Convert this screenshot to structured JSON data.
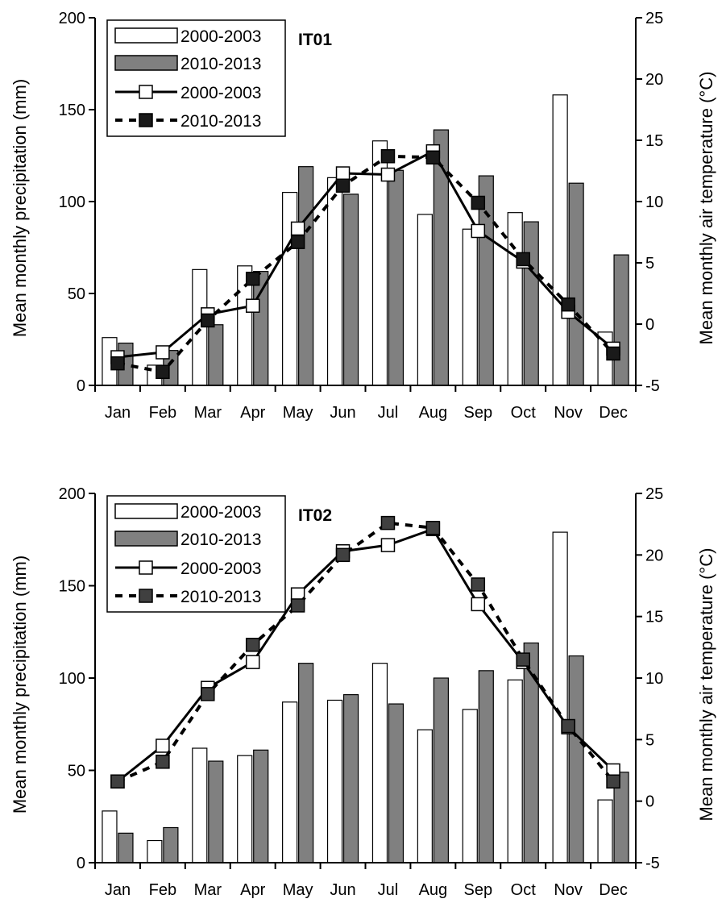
{
  "chart_data": [
    {
      "type": "bar",
      "station_label": "IT01",
      "categories": [
        "Jan",
        "Feb",
        "Mar",
        "Apr",
        "May",
        "Jun",
        "Jul",
        "Aug",
        "Sep",
        "Oct",
        "Nov",
        "Dec"
      ],
      "ylabel": "Mean monthly precipitation (mm)",
      "y2label": "Mean monthly air temperature (°C)",
      "ylim": [
        0,
        200
      ],
      "y2lim": [
        -5,
        25
      ],
      "yticks": [
        "0",
        "50",
        "100",
        "150",
        "200"
      ],
      "y2ticks": [
        "-5",
        "0",
        "5",
        "10",
        "15",
        "20",
        "25"
      ],
      "series": [
        {
          "name": "2000-2003",
          "kind": "bar",
          "axis": "left",
          "fill": "#ffffff",
          "values": [
            26,
            11,
            63,
            65,
            105,
            113,
            133,
            93,
            85,
            94,
            158,
            29
          ]
        },
        {
          "name": "2010-2013",
          "kind": "bar",
          "axis": "left",
          "fill": "#808080",
          "values": [
            23,
            19,
            33,
            62,
            119,
            104,
            117,
            139,
            114,
            89,
            110,
            71
          ]
        },
        {
          "name": "2000-2003",
          "kind": "line",
          "axis": "right",
          "line_style": "solid",
          "marker_fill": "#ffffff",
          "values": [
            -2.7,
            -2.3,
            0.8,
            1.5,
            7.8,
            12.3,
            12.2,
            14.1,
            7.6,
            5.1,
            1.0,
            -2.0
          ]
        },
        {
          "name": "2010-2013",
          "kind": "line",
          "axis": "right",
          "line_style": "dashed",
          "marker_fill": "#1a1a1a",
          "values": [
            -3.2,
            -3.9,
            0.3,
            3.7,
            6.7,
            11.3,
            13.7,
            13.6,
            9.9,
            5.3,
            1.6,
            -2.4
          ]
        }
      ],
      "legend_position": "top-left"
    },
    {
      "type": "bar",
      "station_label": "IT02",
      "categories": [
        "Jan",
        "Feb",
        "Mar",
        "Apr",
        "May",
        "Jun",
        "Jul",
        "Aug",
        "Sep",
        "Oct",
        "Nov",
        "Dec"
      ],
      "ylabel": "Mean monthly precipitation (mm)",
      "y2label": "Mean monthly air temperature (°C)",
      "ylim": [
        0,
        200
      ],
      "y2lim": [
        -5,
        25
      ],
      "yticks": [
        "0",
        "50",
        "100",
        "150",
        "200"
      ],
      "y2ticks": [
        "-5",
        "0",
        "5",
        "10",
        "15",
        "20",
        "25"
      ],
      "series": [
        {
          "name": "2000-2003",
          "kind": "bar",
          "axis": "left",
          "fill": "#ffffff",
          "values": [
            28,
            12,
            62,
            58,
            87,
            88,
            108,
            72,
            83,
            99,
            179,
            34
          ]
        },
        {
          "name": "2010-2013",
          "kind": "bar",
          "axis": "left",
          "fill": "#808080",
          "values": [
            16,
            19,
            55,
            61,
            108,
            91,
            86,
            100,
            104,
            119,
            112,
            49
          ]
        },
        {
          "name": "2000-2003",
          "kind": "line",
          "axis": "right",
          "line_style": "solid",
          "marker_fill": "#ffffff",
          "values": [
            1.6,
            4.5,
            9.2,
            11.3,
            16.8,
            20.3,
            20.8,
            22.1,
            16.0,
            11.3,
            6.0,
            2.5
          ]
        },
        {
          "name": "2010-2013",
          "kind": "line",
          "axis": "right",
          "line_style": "dashed",
          "marker_fill": "#404040",
          "values": [
            1.6,
            3.2,
            8.7,
            12.7,
            15.9,
            20.0,
            22.6,
            22.2,
            17.6,
            11.5,
            6.1,
            1.6
          ]
        }
      ],
      "legend_position": "top-left"
    }
  ]
}
